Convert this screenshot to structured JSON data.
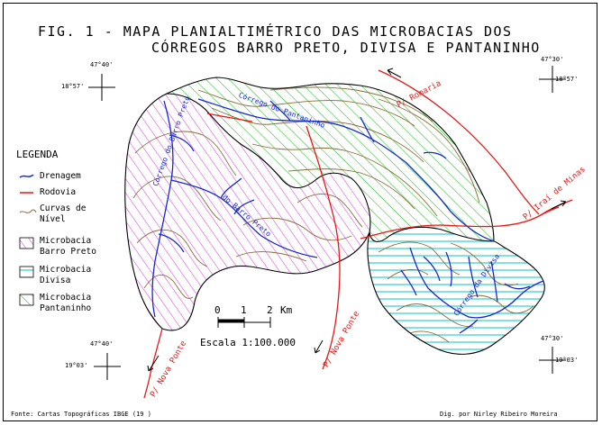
{
  "map": {
    "title_line1": "FIG. 1 - MAPA PLANIALTIMÉTRICO DAS MICROBACIAS DOS",
    "title_line2": "CÓRREGOS BARRO PRETO, DIVISA E PANTANINHO",
    "coordinates": {
      "nw_lon": "47°40'",
      "nw_lat": "18°57'",
      "ne_lon": "47°30'",
      "ne_lat": "18°57'",
      "sw_lon": "47°40'",
      "sw_lat": "19°03'",
      "se_lon": "47°30'",
      "se_lat": "19°03'"
    },
    "road_labels": {
      "romaria": "P/ Romaria",
      "iraí": "P/ Iraí de Minas",
      "nova_ponte_center": "P/ Nova Ponte",
      "nova_ponte_left": "P/ Nova Ponte"
    },
    "stream_labels": {
      "pantaninho": "Córrego do Pantaninho",
      "barro_preto": "Córrego do Barro Preto",
      "barro_preto_2": "do Barro Preto",
      "divisa": "Córrego da Divisa"
    },
    "scale": {
      "ticks": [
        "0",
        "1",
        "2"
      ],
      "unit": "Km",
      "label": "Escala 1:100.000"
    },
    "source_credit": "Fonte: Cartas Topográficas IBGE (19  )",
    "author_credit": "Dig. por Nirley Ribeiro Moreira"
  },
  "legend": {
    "title": "LEGENDA",
    "drainage": "Drenagem",
    "road": "Rodovia",
    "contours": [
      "Curvas de",
      "Nível"
    ],
    "barro_preto": [
      "Microbacia",
      "Barro Preto"
    ],
    "divisa": [
      "Microbacia",
      "Divisa"
    ],
    "pantaninho": [
      "Microbacia",
      "Pantaninho"
    ]
  },
  "colors": {
    "barro_preto_hatch": "#e040e0",
    "divisa_hatch": "#20c8c8",
    "pantaninho_hatch": "#20c020",
    "drainage": "#1428d0",
    "road": "#e81818",
    "contour": "#8a6a3a",
    "boundary": "#000000"
  }
}
